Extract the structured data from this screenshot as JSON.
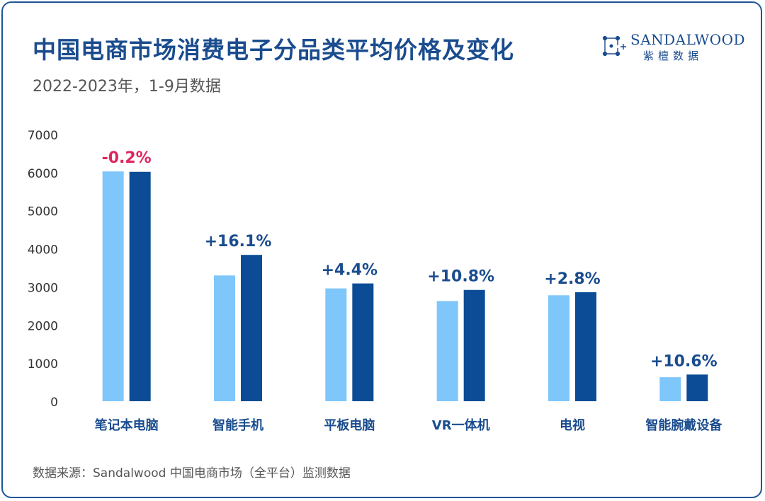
{
  "title": "中国电商市场消费电子分品类平均价格及变化",
  "subtitle": "2022-2023年，1-9月数据",
  "brand": {
    "name": "SANDALWOOD",
    "sub": "紫檀数据",
    "icon": "constellation-icon"
  },
  "source": "数据来源：Sandalwood 中国电商市场（全平台）监测数据",
  "colors": {
    "title": "#1a4c8e",
    "series_2022": "#7fc6fb",
    "series_2023": "#0c4c96",
    "positive": "#1a4c8e",
    "negative": "#e0245e",
    "axis_text": "#333333"
  },
  "chart_data": {
    "type": "bar",
    "categories": [
      "笔记本电脑",
      "智能手机",
      "平板电脑",
      "VR一体机",
      "电视",
      "智能腕戴设备"
    ],
    "series": [
      {
        "values": [
          6030,
          3300,
          2960,
          2630,
          2780,
          630
        ]
      },
      {
        "values": [
          6020,
          3840,
          3090,
          2920,
          2860,
          700
        ]
      }
    ],
    "annotations": [
      "-0.2%",
      "+16.1%",
      "+4.4%",
      "+10.8%",
      "+2.8%",
      "+10.6%"
    ],
    "ylim": [
      0,
      7000
    ],
    "yticks": [
      0,
      1000,
      2000,
      3000,
      4000,
      5000,
      6000,
      7000
    ],
    "grid": false,
    "legend": "none"
  }
}
